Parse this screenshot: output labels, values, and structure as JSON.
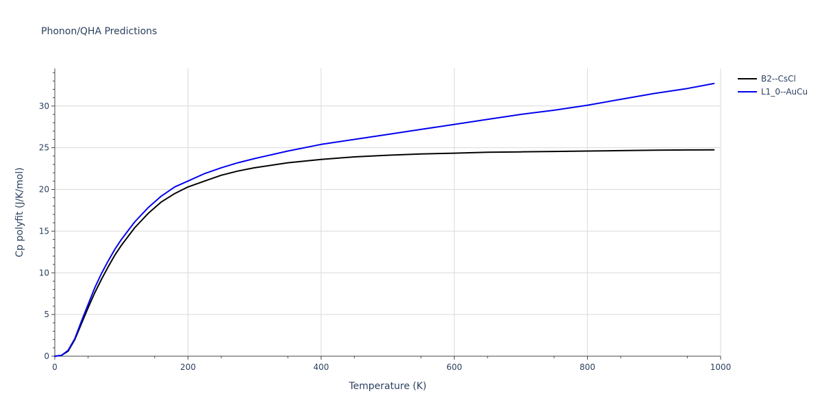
{
  "chart_data": {
    "type": "line",
    "title": "Phonon/QHA Predictions",
    "xlabel": "Temperature (K)",
    "ylabel": "Cp polyfit (J/K/mol)",
    "xlim": [
      0,
      1000
    ],
    "ylim": [
      0,
      34.5
    ],
    "xticks": [
      0,
      200,
      400,
      600,
      800,
      1000
    ],
    "xtick_labels": [
      "0",
      "200",
      "400",
      "600",
      "800",
      "1000"
    ],
    "yticks": [
      0,
      5,
      10,
      15,
      20,
      25,
      30
    ],
    "ytick_labels": [
      "0",
      "5",
      "10",
      "15",
      "20",
      "25",
      "30"
    ],
    "grid": true,
    "legend_position": "top-right",
    "series": [
      {
        "name": "B2--CsCl",
        "color": "#000000",
        "x": [
          0,
          10,
          20,
          30,
          40,
          50,
          60,
          70,
          80,
          90,
          100,
          120,
          140,
          160,
          180,
          200,
          225,
          250,
          275,
          300,
          350,
          400,
          450,
          500,
          550,
          600,
          650,
          700,
          750,
          800,
          850,
          900,
          950,
          990
        ],
        "y": [
          0,
          0.1,
          0.6,
          2.0,
          3.9,
          5.8,
          7.6,
          9.2,
          10.7,
          12.1,
          13.3,
          15.4,
          17.1,
          18.5,
          19.5,
          20.3,
          21.0,
          21.7,
          22.2,
          22.6,
          23.2,
          23.6,
          23.9,
          24.1,
          24.25,
          24.35,
          24.45,
          24.5,
          24.55,
          24.6,
          24.65,
          24.7,
          24.73,
          24.75
        ]
      },
      {
        "name": "L1_0--AuCu",
        "color": "#0000ee",
        "x": [
          0,
          10,
          20,
          30,
          40,
          50,
          60,
          70,
          80,
          90,
          100,
          120,
          140,
          160,
          180,
          200,
          225,
          250,
          275,
          300,
          350,
          400,
          450,
          500,
          550,
          600,
          650,
          700,
          750,
          800,
          850,
          900,
          950,
          990
        ],
        "y": [
          0,
          0.1,
          0.7,
          2.1,
          4.2,
          6.2,
          8.2,
          9.9,
          11.4,
          12.8,
          14.0,
          16.1,
          17.8,
          19.2,
          20.3,
          21.0,
          21.9,
          22.6,
          23.2,
          23.7,
          24.6,
          25.4,
          26.0,
          26.6,
          27.2,
          27.8,
          28.4,
          29.0,
          29.5,
          30.1,
          30.8,
          31.5,
          32.1,
          32.7
        ]
      }
    ]
  }
}
